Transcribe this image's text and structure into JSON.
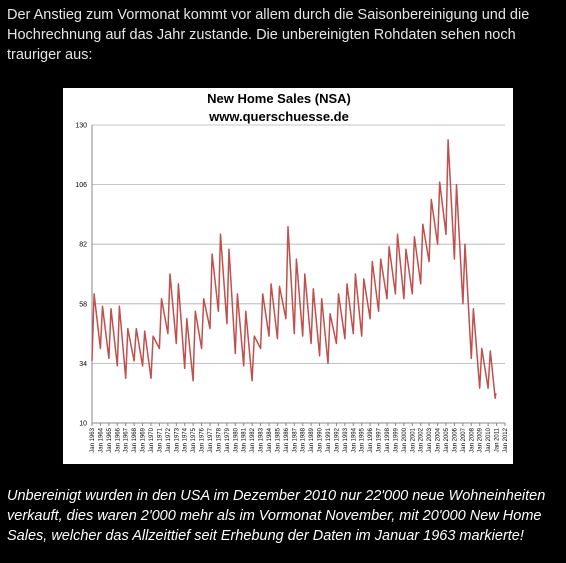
{
  "intro": [
    "Der Anstieg zum Vormonat kommt vor allem durch die Saisonbereinigung und die",
    "Hochrechnung auf das Jahr zustande. Die unbereinigten Rohdaten sehen noch",
    "trauriger aus:"
  ],
  "chart_data": {
    "type": "line",
    "title": "New Home Sales (NSA)",
    "subtitle": "www.querschuesse.de",
    "x": [
      "Jan 1963",
      "Apr 1963",
      "Jan 1964",
      "Apr 1964",
      "Jan 1965",
      "Apr 1965",
      "Jan 1966",
      "Apr 1966",
      "Jan 1967",
      "Apr 1967",
      "Jan 1968",
      "Apr 1968",
      "Jan 1969",
      "Apr 1969",
      "Jan 1970",
      "Apr 1970",
      "Jan 1971",
      "Apr 1971",
      "Jan 1972",
      "Apr 1972",
      "Jan 1973",
      "Apr 1973",
      "Jan 1974",
      "Apr 1974",
      "Jan 1975",
      "Apr 1975",
      "Jan 1976",
      "Apr 1976",
      "Jan 1977",
      "Apr 1977",
      "Jan 1978",
      "Apr 1978",
      "Jan 1979",
      "Apr 1979",
      "Jan 1980",
      "Apr 1980",
      "Jan 1981",
      "Apr 1981",
      "Jan 1982",
      "Apr 1982",
      "Jan 1983",
      "Apr 1983",
      "Jan 1984",
      "Apr 1984",
      "Jan 1985",
      "Apr 1985",
      "Jan 1986",
      "Apr 1986",
      "Jan 1987",
      "Apr 1987",
      "Jan 1988",
      "Apr 1988",
      "Jan 1989",
      "Apr 1989",
      "Jan 1990",
      "Apr 1990",
      "Jan 1991",
      "Apr 1991",
      "Jan 1992",
      "Apr 1992",
      "Jan 1993",
      "Apr 1993",
      "Jan 1994",
      "Apr 1994",
      "Jan 1995",
      "Apr 1995",
      "Jan 1996",
      "Apr 1996",
      "Jan 1997",
      "Apr 1997",
      "Jan 1998",
      "Apr 1998",
      "Jan 1999",
      "Apr 1999",
      "Jan 2000",
      "Apr 2000",
      "Jan 2001",
      "Apr 2001",
      "Jan 2002",
      "Apr 2002",
      "Jan 2003",
      "Apr 2003",
      "Jan 2004",
      "Apr 2004",
      "Jan 2005",
      "Apr 2005",
      "Jan 2006",
      "Apr 2006",
      "Jan 2007",
      "Apr 2007",
      "Jan 2008",
      "Apr 2008",
      "Jan 2009",
      "Apr 2009",
      "Jan 2010",
      "Apr 2010",
      "Nov 2010",
      "Dec 2010"
    ],
    "series": [
      {
        "color": "#c0504d",
        "values": [
          35,
          62,
          40,
          57,
          36,
          56,
          33,
          57,
          28,
          48,
          35,
          48,
          33,
          47,
          28,
          45,
          40,
          60,
          46,
          70,
          42,
          66,
          32,
          52,
          27,
          55,
          40,
          60,
          48,
          78,
          55,
          86,
          50,
          80,
          38,
          62,
          33,
          55,
          27,
          45,
          40,
          62,
          45,
          66,
          44,
          65,
          52,
          89,
          46,
          76,
          45,
          70,
          42,
          64,
          37,
          60,
          34,
          54,
          42,
          62,
          44,
          66,
          46,
          70,
          45,
          68,
          52,
          75,
          55,
          76,
          60,
          81,
          62,
          86,
          60,
          80,
          62,
          85,
          66,
          90,
          75,
          100,
          82,
          107,
          86,
          124,
          76,
          106,
          58,
          82,
          36,
          56,
          24,
          40,
          24,
          39,
          20,
          22
        ]
      }
    ],
    "xticks": [
      "Jan 1963",
      "Jan 1964",
      "Jan 1965",
      "Jan 1966",
      "Jan 1967",
      "Jan 1968",
      "Jan 1969",
      "Jan 1970",
      "Jan 1971",
      "Jan 1972",
      "Jan 1973",
      "Jan 1974",
      "Jan 1975",
      "Jan 1976",
      "Jan 1977",
      "Jan 1978",
      "Jan 1979",
      "Jan 1980",
      "Jan 1981",
      "Jan 1982",
      "Jan 1983",
      "Jan 1984",
      "Jan 1985",
      "Jan 1986",
      "Jan 1987",
      "Jan 1988",
      "Jan 1989",
      "Jan 1990",
      "Jan 1991",
      "Jan 1992",
      "Jan 1993",
      "Jan 1994",
      "Jan 1995",
      "Jan 1996",
      "Jan 1997",
      "Jan 1998",
      "Jan 1999",
      "Jan 2000",
      "Jan 2001",
      "Jan 2002",
      "Jan 2003",
      "Jan 2004",
      "Jan 2005",
      "Jan 2006",
      "Jan 2007",
      "Jan 2008",
      "Jan 2009",
      "Jan 2010",
      "Jan 2011",
      "Jan 2012"
    ],
    "ylim": [
      10,
      130
    ],
    "yticks": [
      10,
      34,
      58,
      82,
      106,
      130
    ],
    "grid": true
  },
  "caption": [
    "Unbereinigt wurden in den USA im Dezember 2010 nur 22'000 neue Wohneinheiten",
    "verkauft, dies waren 2'000 mehr als im Vormonat November, mit 20'000 New Home",
    "Sales, welcher das Allzeittief seit Erhebung der Daten im Januar 1963 markierte!"
  ]
}
